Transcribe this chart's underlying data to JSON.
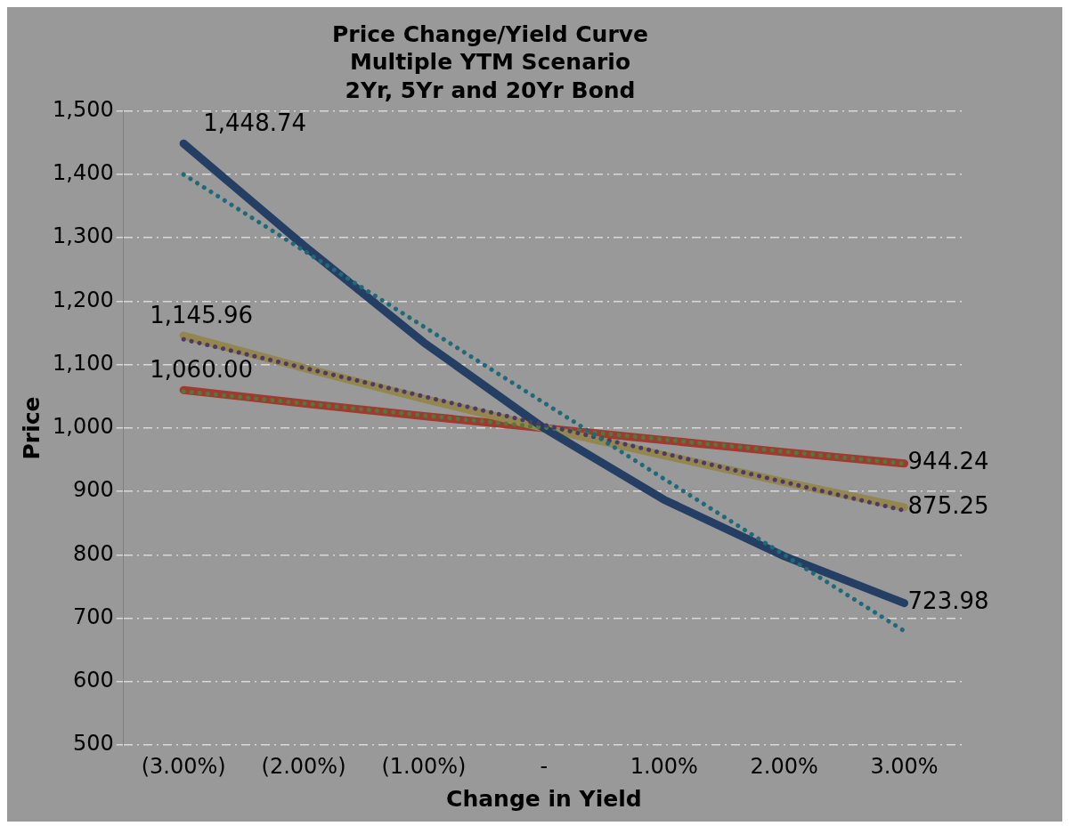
{
  "chart_data": {
    "type": "line",
    "title": "Price Change/Yield Curve\nMultiple YTM Scenario\n2Yr, 5Yr and 20Yr Bond",
    "xlabel": "Change in Yield",
    "ylabel": "Price",
    "categories": [
      "(3.00%)",
      "(2.00%)",
      "(1.00%)",
      "-",
      "1.00%",
      "2.00%",
      "3.00%"
    ],
    "series": [
      {
        "color": "#243f63",
        "line_style": "solid",
        "values": [
          1448.74,
          1288,
          1135,
          1000,
          887,
          798,
          723.98
        ],
        "value_labels": [
          "1,448.74",
          null,
          null,
          null,
          null,
          null,
          "723.98"
        ]
      },
      {
        "color": "#93874f",
        "line_style": "solid",
        "values": [
          1145.96,
          1095,
          1046,
          1000,
          957,
          915,
          875.25
        ],
        "value_labels": [
          "1,145.96",
          null,
          null,
          null,
          null,
          null,
          "875.25"
        ]
      },
      {
        "color": "#a0392f",
        "line_style": "solid",
        "values": [
          1060.0,
          1039,
          1019,
          1000,
          981,
          962,
          944.24
        ],
        "value_labels": [
          "1,060.00",
          null,
          null,
          null,
          null,
          null,
          "944.24"
        ]
      },
      {
        "type": "line",
        "color": "#1f6a78",
        "line_style": "dotted",
        "values": [
          1400,
          1280,
          1160,
          1040,
          920,
          800,
          680
        ]
      },
      {
        "type": "line",
        "color": "#4e3868",
        "line_style": "dotted",
        "values": [
          1140,
          1095,
          1050,
          1005,
          960,
          915,
          870
        ]
      },
      {
        "type": "line",
        "color": "#4f7a3a",
        "line_style": "dotted",
        "values": [
          1058,
          1039,
          1020,
          1001,
          982,
          963,
          944
        ]
      }
    ],
    "ylim": [
      500,
      1500
    ],
    "yticks": [
      500,
      600,
      700,
      800,
      900,
      {
        "value": 1000,
        "label": "1,000"
      },
      {
        "value": 1100,
        "label": "1,100"
      },
      {
        "value": 1200,
        "label": "1,200"
      },
      {
        "value": 1300,
        "label": "1,300"
      },
      {
        "value": 1400,
        "label": "1,400"
      },
      {
        "value": 1500,
        "label": "1,500"
      }
    ],
    "grid": "y",
    "legend": false
  }
}
